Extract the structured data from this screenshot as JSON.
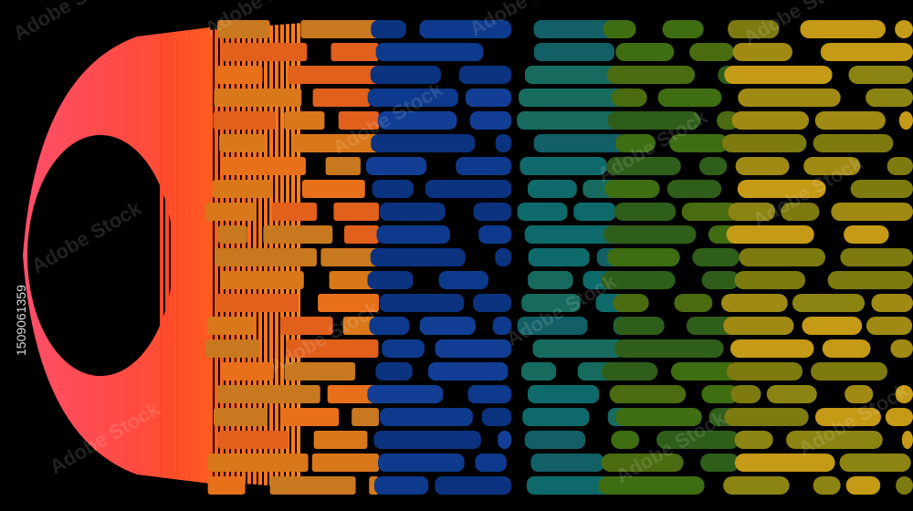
{
  "watermark": "Adobe Stock",
  "image_id": "1509061359"
}
